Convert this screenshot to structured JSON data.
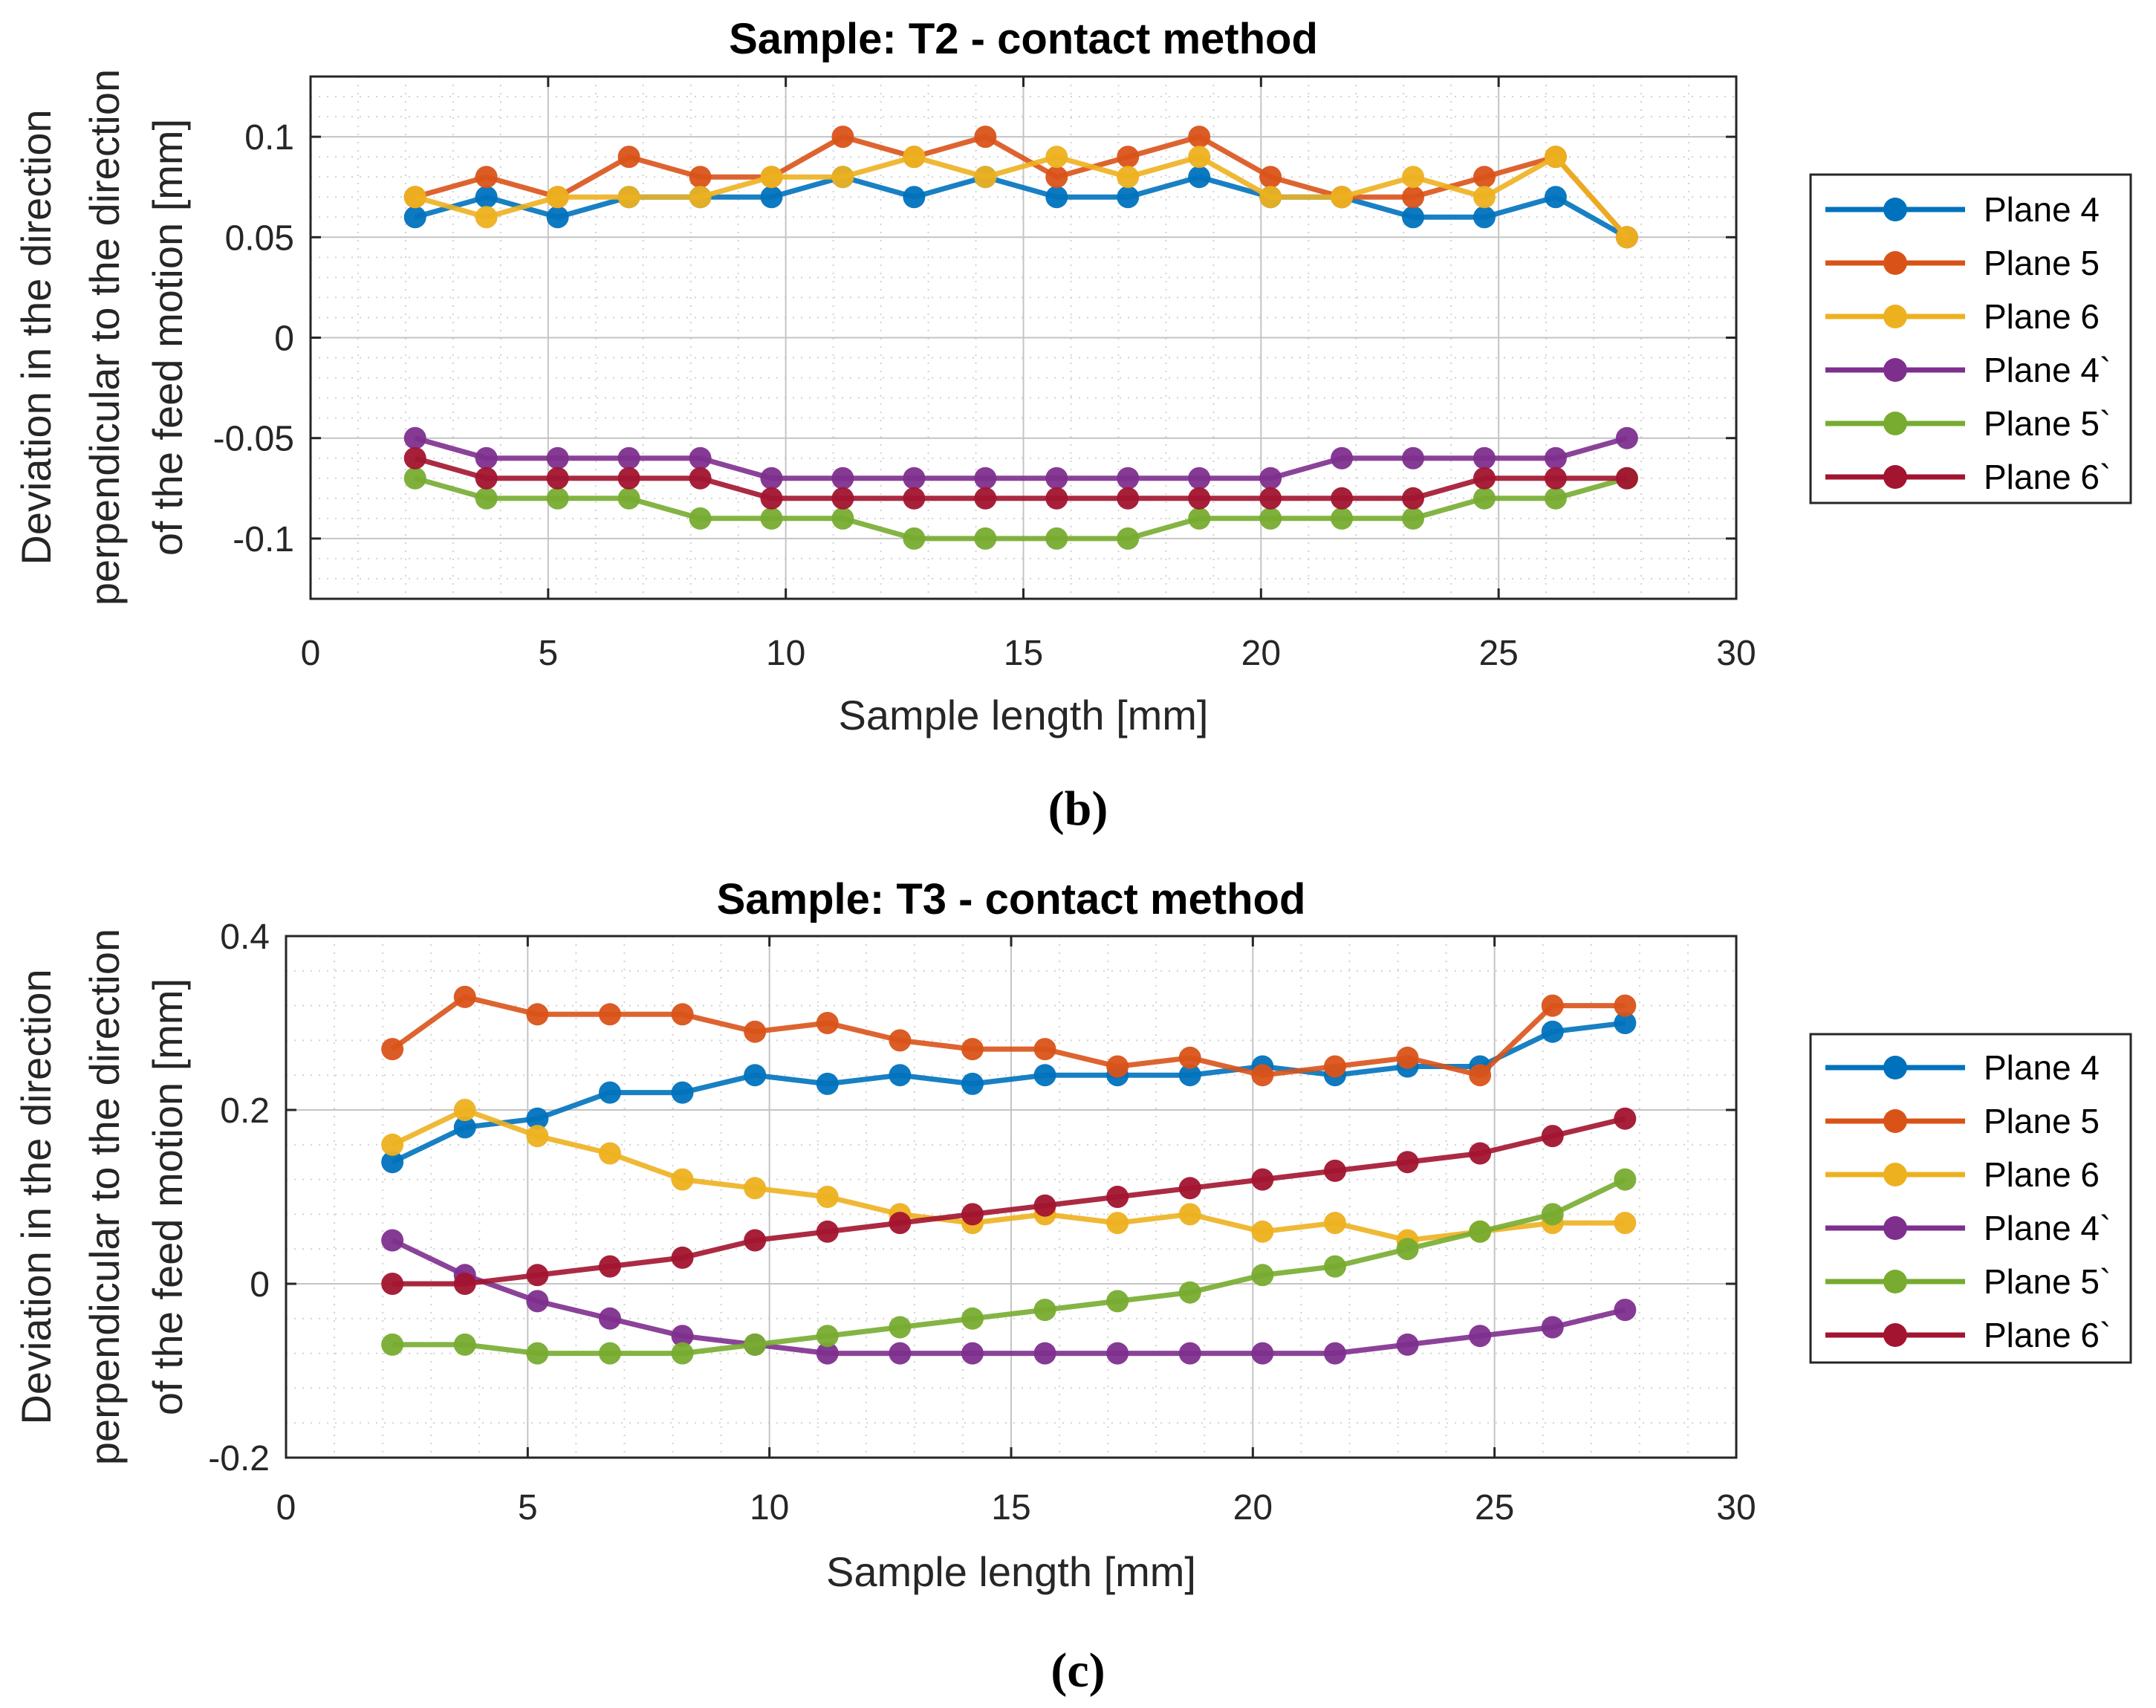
{
  "chart_data": [
    {
      "type": "line",
      "title": "Sample: T2 - contact method",
      "caption": "(b)",
      "xlabel": "Sample length [mm]",
      "ylabel_line1": "Deviation in the direction",
      "ylabel_line2": "perpendicular to the direction",
      "ylabel_line3": "of the feed motion [mm]",
      "xlim": [
        0,
        30
      ],
      "ylim": [
        -0.13,
        0.13
      ],
      "xticks": [
        0,
        5,
        10,
        15,
        20,
        25,
        30
      ],
      "xtick_labels": [
        "0",
        "5",
        "10",
        "15",
        "20",
        "25",
        "30"
      ],
      "yticks": [
        0.1,
        0.05,
        0,
        -0.05,
        -0.1
      ],
      "ytick_labels": [
        "0.1",
        "0.05",
        "0",
        "-0.05",
        "-0.1"
      ],
      "grid": true,
      "legend_position": "right",
      "x": [
        2.2,
        3.7,
        5.2,
        6.7,
        8.2,
        9.7,
        11.2,
        12.7,
        14.2,
        15.7,
        17.2,
        18.7,
        20.2,
        21.7,
        23.2,
        24.7,
        26.2,
        27.7
      ],
      "series": [
        {
          "name": "Plane 4",
          "color": "#0072BD",
          "values": [
            0.06,
            0.07,
            0.06,
            0.07,
            0.07,
            0.07,
            0.08,
            0.07,
            0.08,
            0.07,
            0.07,
            0.08,
            0.07,
            0.07,
            0.06,
            0.06,
            0.07,
            0.05
          ]
        },
        {
          "name": "Plane 5",
          "color": "#D95319",
          "values": [
            0.07,
            0.08,
            0.07,
            0.09,
            0.08,
            0.08,
            0.1,
            0.09,
            0.1,
            0.08,
            0.09,
            0.1,
            0.08,
            0.07,
            0.07,
            0.08,
            0.09,
            0.05
          ]
        },
        {
          "name": "Plane 6",
          "color": "#EDB120",
          "values": [
            0.07,
            0.06,
            0.07,
            0.07,
            0.07,
            0.08,
            0.08,
            0.09,
            0.08,
            0.09,
            0.08,
            0.09,
            0.07,
            0.07,
            0.08,
            0.07,
            0.09,
            0.05
          ]
        },
        {
          "name": "Plane 4`",
          "color": "#7E2F8E",
          "values": [
            -0.05,
            -0.06,
            -0.06,
            -0.06,
            -0.06,
            -0.07,
            -0.07,
            -0.07,
            -0.07,
            -0.07,
            -0.07,
            -0.07,
            -0.07,
            -0.06,
            -0.06,
            -0.06,
            -0.06,
            -0.05
          ]
        },
        {
          "name": "Plane 5`",
          "color": "#77AC30",
          "values": [
            -0.07,
            -0.08,
            -0.08,
            -0.08,
            -0.09,
            -0.09,
            -0.09,
            -0.1,
            -0.1,
            -0.1,
            -0.1,
            -0.09,
            -0.09,
            -0.09,
            -0.09,
            -0.08,
            -0.08,
            -0.07
          ]
        },
        {
          "name": "Plane 6`",
          "color": "#A2142F",
          "values": [
            -0.06,
            -0.07,
            -0.07,
            -0.07,
            -0.07,
            -0.08,
            -0.08,
            -0.08,
            -0.08,
            -0.08,
            -0.08,
            -0.08,
            -0.08,
            -0.08,
            -0.08,
            -0.07,
            -0.07,
            -0.07
          ]
        }
      ]
    },
    {
      "type": "line",
      "title": "Sample: T3 - contact method",
      "caption": "(c)",
      "xlabel": "Sample length [mm]",
      "ylabel_line1": "Deviation in the direction",
      "ylabel_line2": "perpendicular to the direction",
      "ylabel_line3": "of the feed motion [mm]",
      "xlim": [
        0,
        30
      ],
      "ylim": [
        -0.2,
        0.4
      ],
      "xticks": [
        0,
        5,
        10,
        15,
        20,
        25,
        30
      ],
      "xtick_labels": [
        "0",
        "5",
        "10",
        "15",
        "20",
        "25",
        "30"
      ],
      "yticks": [
        0.4,
        0.2,
        0,
        -0.2
      ],
      "ytick_labels": [
        "0.4",
        "0.2",
        "0",
        "-0.2"
      ],
      "grid": true,
      "legend_position": "right",
      "x": [
        2.2,
        3.7,
        5.2,
        6.7,
        8.2,
        9.7,
        11.2,
        12.7,
        14.2,
        15.7,
        17.2,
        18.7,
        20.2,
        21.7,
        23.2,
        24.7,
        26.2,
        27.7
      ],
      "series": [
        {
          "name": "Plane 4",
          "color": "#0072BD",
          "values": [
            0.14,
            0.18,
            0.19,
            0.22,
            0.22,
            0.24,
            0.23,
            0.24,
            0.23,
            0.24,
            0.24,
            0.24,
            0.25,
            0.24,
            0.25,
            0.25,
            0.29,
            0.3
          ]
        },
        {
          "name": "Plane 5",
          "color": "#D95319",
          "values": [
            0.27,
            0.33,
            0.31,
            0.31,
            0.31,
            0.29,
            0.3,
            0.28,
            0.27,
            0.27,
            0.25,
            0.26,
            0.24,
            0.25,
            0.26,
            0.24,
            0.32,
            0.32
          ]
        },
        {
          "name": "Plane 6",
          "color": "#EDB120",
          "values": [
            0.16,
            0.2,
            0.17,
            0.15,
            0.12,
            0.11,
            0.1,
            0.08,
            0.07,
            0.08,
            0.07,
            0.08,
            0.06,
            0.07,
            0.05,
            0.06,
            0.07,
            0.07
          ]
        },
        {
          "name": "Plane 4`",
          "color": "#7E2F8E",
          "values": [
            0.05,
            0.01,
            -0.02,
            -0.04,
            -0.06,
            -0.07,
            -0.08,
            -0.08,
            -0.08,
            -0.08,
            -0.08,
            -0.08,
            -0.08,
            -0.08,
            -0.07,
            -0.06,
            -0.05,
            -0.03
          ]
        },
        {
          "name": "Plane 5`",
          "color": "#77AC30",
          "values": [
            -0.07,
            -0.07,
            -0.08,
            -0.08,
            -0.08,
            -0.07,
            -0.06,
            -0.05,
            -0.04,
            -0.03,
            -0.02,
            -0.01,
            0.01,
            0.02,
            0.04,
            0.06,
            0.08,
            0.12
          ]
        },
        {
          "name": "Plane 6`",
          "color": "#A2142F",
          "values": [
            0.0,
            0.0,
            0.01,
            0.02,
            0.03,
            0.05,
            0.06,
            0.07,
            0.08,
            0.09,
            0.1,
            0.11,
            0.12,
            0.13,
            0.14,
            0.15,
            0.17,
            0.19
          ]
        }
      ]
    }
  ]
}
